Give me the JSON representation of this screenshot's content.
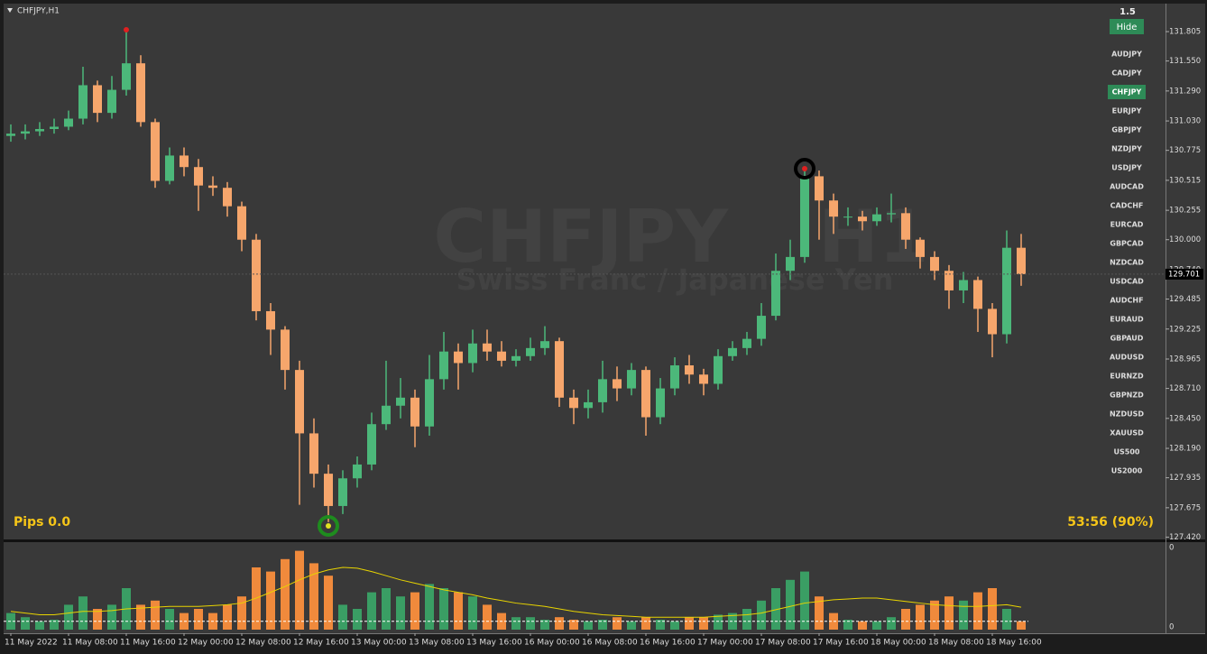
{
  "header": "CHFJPY,H1",
  "watermark": {
    "symbol": "CHFJPY",
    "period": "H1",
    "description": "Swiss Franc / Japanese Yen"
  },
  "zoom": "1.5",
  "hide_button": "Hide",
  "symbols": [
    "AUDJPY",
    "CADJPY",
    "CHFJPY",
    "EURJPY",
    "GBPJPY",
    "NZDJPY",
    "USDJPY",
    "AUDCAD",
    "CADCHF",
    "EURCAD",
    "GBPCAD",
    "NZDCAD",
    "USDCAD",
    "AUDCHF",
    "EURAUD",
    "GBPAUD",
    "AUDUSD",
    "EURNZD",
    "GBPNZD",
    "NZDUSD",
    "XAUUSD",
    "US500",
    "US2000"
  ],
  "selected_symbol": "CHFJPY",
  "pips": "Pips 0.0",
  "timer": "53:56 (90%)",
  "chart_data": {
    "type": "candlestick",
    "categories": [
      "11 May 2022",
      null,
      null,
      null,
      "11 May 08:00",
      null,
      null,
      null,
      "11 May 16:00",
      null,
      null,
      null,
      "12 May 00:00",
      null,
      null,
      null,
      "12 May 08:00",
      null,
      null,
      null,
      "12 May 16:00",
      null,
      null,
      null,
      "13 May 00:00",
      null,
      null,
      null,
      "13 May 08:00",
      null,
      null,
      null,
      "13 May 16:00",
      null,
      null,
      null,
      "16 May 00:00",
      null,
      null,
      null,
      "16 May 08:00",
      null,
      null,
      null,
      "16 May 16:00",
      null,
      null,
      null,
      "17 May 00:00",
      null,
      null,
      null,
      "17 May 08:00",
      null,
      null,
      null,
      "17 May 16:00",
      null,
      null,
      null,
      "18 May 00:00",
      null,
      null,
      null,
      "18 May 08:00",
      null,
      null,
      null,
      "18 May 16:00",
      null,
      null
    ],
    "open": [
      130.9,
      130.92,
      130.94,
      130.96,
      130.98,
      131.05,
      131.34,
      131.1,
      131.3,
      131.53,
      131.02,
      130.51,
      130.73,
      130.63,
      130.47,
      130.45,
      130.29,
      130.0,
      129.38,
      129.22,
      128.87,
      128.32,
      127.97,
      127.69,
      127.93,
      128.05,
      128.4,
      128.56,
      128.63,
      128.38,
      128.79,
      129.03,
      128.93,
      129.1,
      129.03,
      128.95,
      128.99,
      129.06,
      129.12,
      128.63,
      128.54,
      128.59,
      128.79,
      128.71,
      128.87,
      128.46,
      128.71,
      128.91,
      128.83,
      128.75,
      128.99,
      129.06,
      129.14,
      129.34,
      129.73,
      129.85,
      130.55,
      130.34,
      130.2,
      130.2,
      130.16,
      130.22,
      130.23,
      130.0,
      129.85,
      129.73,
      129.56,
      129.65,
      129.4,
      129.18,
      129.93
    ],
    "high": [
      131.0,
      131.0,
      131.02,
      131.05,
      131.12,
      131.5,
      131.38,
      131.42,
      131.805,
      131.6,
      131.05,
      130.8,
      130.8,
      130.7,
      130.55,
      130.5,
      130.33,
      130.05,
      129.45,
      129.25,
      128.95,
      128.45,
      128.05,
      128.0,
      128.12,
      128.5,
      128.95,
      128.8,
      128.7,
      129.0,
      129.2,
      129.1,
      129.22,
      129.22,
      129.12,
      129.05,
      129.15,
      129.25,
      129.15,
      128.7,
      128.7,
      128.95,
      128.9,
      128.93,
      128.9,
      128.8,
      128.98,
      129.0,
      128.88,
      129.05,
      129.12,
      129.2,
      129.45,
      129.88,
      130.0,
      130.6,
      130.6,
      130.4,
      130.28,
      130.25,
      130.28,
      130.4,
      130.28,
      130.02,
      129.9,
      129.78,
      129.72,
      129.68,
      129.45,
      130.08,
      130.05
    ],
    "low": [
      130.85,
      130.87,
      130.9,
      130.92,
      130.95,
      131.0,
      131.02,
      131.05,
      131.25,
      130.98,
      130.45,
      130.48,
      130.55,
      130.25,
      130.38,
      130.2,
      129.9,
      129.3,
      129.0,
      128.7,
      127.7,
      127.85,
      127.55,
      127.62,
      127.85,
      128.0,
      128.35,
      128.45,
      128.2,
      128.3,
      128.7,
      128.7,
      128.85,
      128.95,
      128.9,
      128.9,
      128.95,
      129.0,
      128.55,
      128.4,
      128.45,
      128.5,
      128.6,
      128.65,
      128.3,
      128.4,
      128.65,
      128.75,
      128.65,
      128.7,
      128.95,
      129.0,
      129.08,
      129.3,
      129.65,
      129.8,
      130.0,
      130.05,
      130.12,
      130.08,
      130.12,
      130.15,
      129.92,
      129.75,
      129.65,
      129.4,
      129.45,
      129.2,
      128.98,
      129.1,
      129.6
    ],
    "close": [
      130.92,
      130.94,
      130.96,
      130.98,
      131.05,
      131.34,
      131.1,
      131.3,
      131.53,
      131.02,
      130.51,
      130.73,
      130.63,
      130.47,
      130.45,
      130.29,
      130.0,
      129.38,
      129.22,
      128.87,
      128.32,
      127.97,
      127.69,
      127.93,
      128.05,
      128.4,
      128.56,
      128.63,
      128.38,
      128.79,
      129.03,
      128.93,
      129.1,
      129.03,
      128.95,
      128.99,
      129.06,
      129.12,
      128.63,
      128.54,
      128.59,
      128.79,
      128.71,
      128.87,
      128.46,
      128.71,
      128.91,
      128.83,
      128.75,
      128.99,
      129.06,
      129.14,
      129.34,
      129.73,
      129.85,
      130.55,
      130.34,
      130.2,
      130.2,
      130.16,
      130.22,
      130.23,
      130.0,
      129.85,
      129.73,
      129.56,
      129.65,
      129.4,
      129.18,
      129.93,
      129.701
    ],
    "up_color": "#4cb87a",
    "down_color": "#f6a66c",
    "last_price": 129.701,
    "ylim": [
      127.4,
      132.04
    ],
    "yticks": [
      131.805,
      {
        "value": 131.55,
        "label": "131.550"
      },
      {
        "value": 131.29,
        "label": "131.290"
      },
      {
        "value": 131.03,
        "label": "131.030"
      },
      130.775,
      130.515,
      130.255,
      {
        "value": 130,
        "label": "130.000"
      },
      {
        "value": 129.74,
        "label": "129.740"
      },
      129.485,
      129.225,
      128.965,
      {
        "value": 128.71,
        "label": "128.710"
      },
      {
        "value": 128.45,
        "label": "128.450"
      },
      {
        "value": 128.19,
        "label": "128.190"
      },
      127.935,
      127.675,
      {
        "value": 127.42,
        "label": "127.420"
      }
    ]
  },
  "volume": {
    "values": [
      20,
      15,
      10,
      12,
      30,
      40,
      25,
      30,
      50,
      30,
      35,
      25,
      20,
      25,
      20,
      30,
      40,
      75,
      70,
      85,
      95,
      80,
      65,
      30,
      25,
      45,
      50,
      40,
      45,
      55,
      50,
      45,
      40,
      30,
      20,
      15,
      15,
      12,
      15,
      12,
      10,
      12,
      15,
      10,
      15,
      12,
      10,
      15,
      15,
      18,
      20,
      25,
      35,
      50,
      60,
      70,
      40,
      20,
      12,
      10,
      10,
      15,
      25,
      30,
      35,
      40,
      35,
      45,
      50,
      25,
      10
    ],
    "ma": [
      22,
      20,
      18,
      18,
      20,
      22,
      22,
      23,
      25,
      26,
      27,
      28,
      28,
      28,
      29,
      30,
      32,
      38,
      45,
      52,
      60,
      67,
      72,
      75,
      74,
      70,
      65,
      60,
      56,
      52,
      48,
      45,
      42,
      38,
      35,
      32,
      30,
      28,
      25,
      22,
      20,
      18,
      17,
      16,
      15,
      15,
      15,
      15,
      15,
      16,
      17,
      18,
      20,
      24,
      28,
      32,
      34,
      36,
      37,
      38,
      38,
      36,
      34,
      32,
      30,
      29,
      28,
      28,
      29,
      30,
      27
    ],
    "level": 10,
    "up_color": "#3a9e64",
    "down_color": "#f08a3c",
    "ma_color": "#e8d400",
    "ylim": [
      0,
      100
    ],
    "scale_labels": [
      "0",
      "0"
    ]
  }
}
